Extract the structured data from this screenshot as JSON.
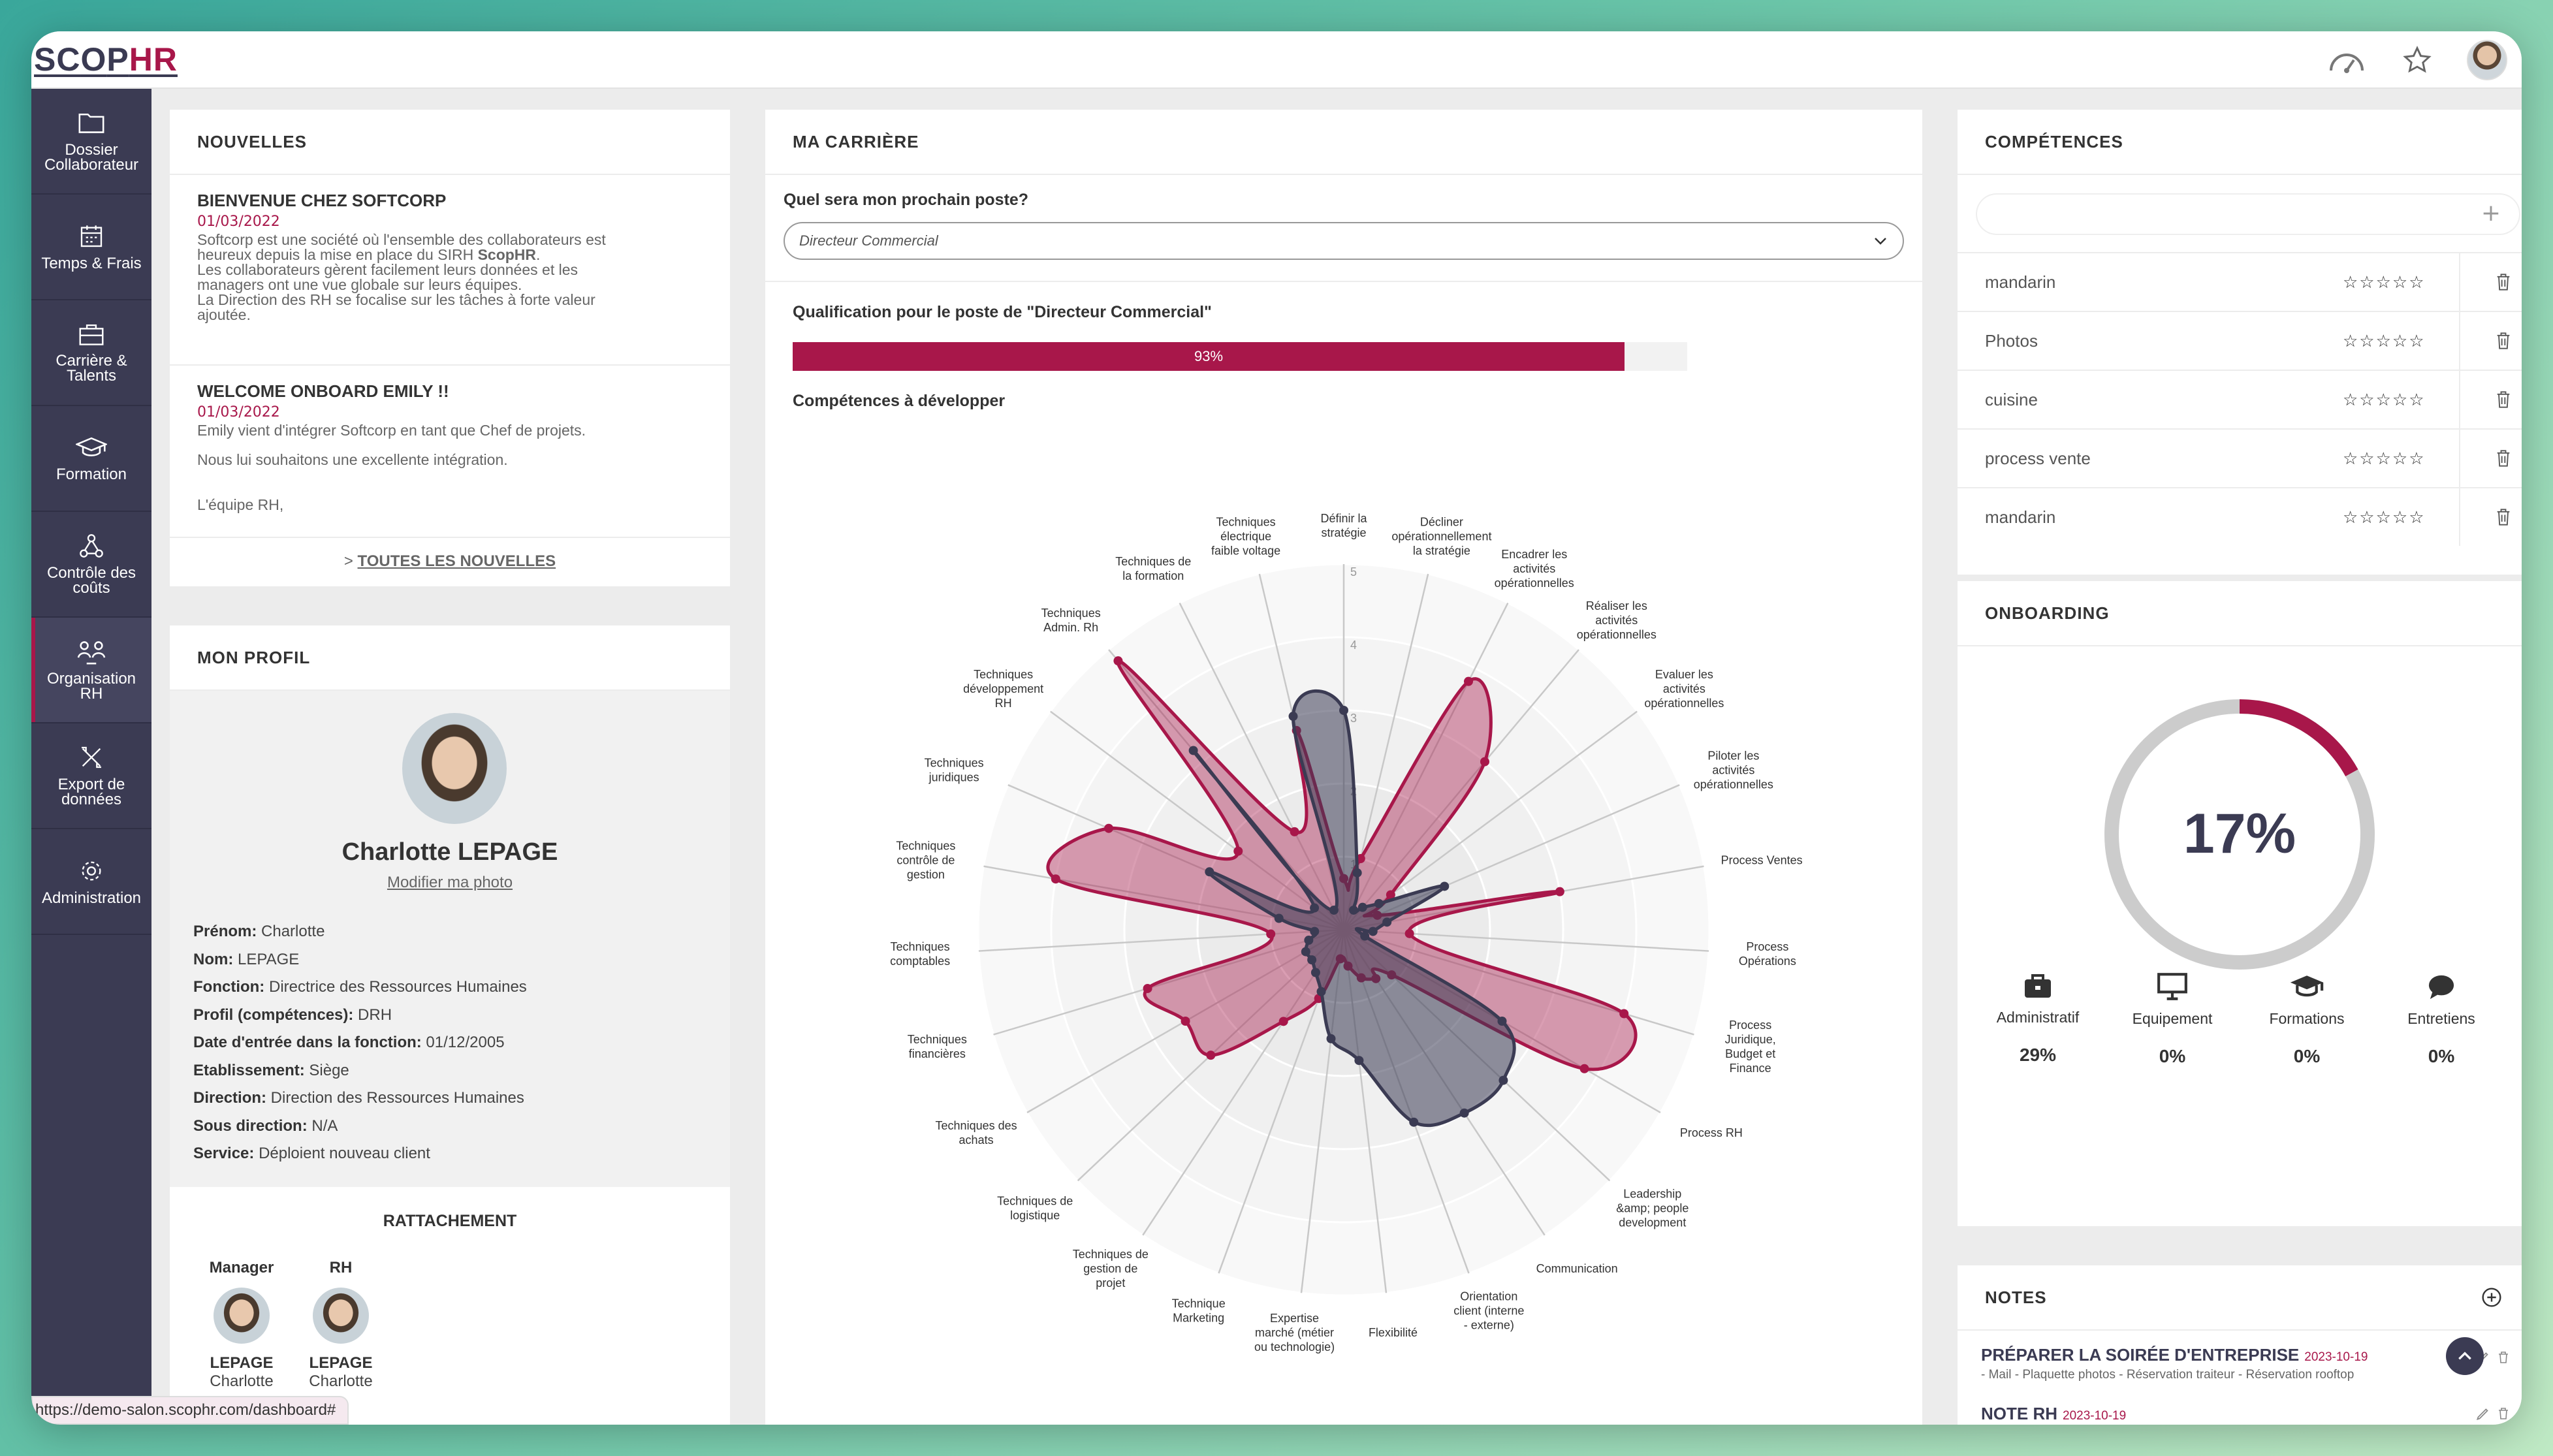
{
  "app": {
    "logo_main": "SC",
    "logo_mid": "O",
    "logo_p": "P",
    "logo_hr": "HR"
  },
  "sidebar": {
    "items": [
      {
        "label": "Dossier Collaborateur",
        "icon": "folder-icon"
      },
      {
        "label": "Temps & Frais",
        "icon": "calendar-icon"
      },
      {
        "label": "Carrière & Talents",
        "icon": "briefcase-icon"
      },
      {
        "label": "Formation",
        "icon": "graduation-cap-icon"
      },
      {
        "label": "Contrôle des coûts",
        "icon": "network-icon"
      },
      {
        "label": "Organisation RH",
        "icon": "people-icon"
      },
      {
        "label": "Export de données",
        "icon": "tools-icon"
      },
      {
        "label": "Administration",
        "icon": "gear-icon"
      }
    ]
  },
  "news": {
    "title": "NOUVELLES",
    "items": [
      {
        "title": "BIENVENUE CHEZ SOFTCORP",
        "date": "01/03/2022",
        "l1": "Softcorp est une société où l'ensemble des collaborateurs est",
        "l2a": "heureux depuis la mise en place du SIRH ",
        "l2b": "ScopHR",
        "l2c": ".",
        "l3": "Les collaborateurs gèrent facilement leurs données et les",
        "l4": "managers ont une vue globale sur leurs équipes.",
        "l5": "La Direction des RH se focalise sur les tâches à forte valeur",
        "l6": "ajoutée."
      },
      {
        "title": "WELCOME ONBOARD EMILY !!",
        "date": "01/03/2022",
        "l1": "Emily vient d'intégrer Softcorp en tant que Chef de projets.",
        "l2": "Nous lui souhaitons une excellente intégration.",
        "l3": "L'équipe RH,"
      }
    ],
    "all_prefix": "> ",
    "all_label": "TOUTES LES NOUVELLES"
  },
  "profile": {
    "title": "MON PROFIL",
    "name": "Charlotte LEPAGE",
    "edit_photo": "Modifier ma photo",
    "fields": [
      {
        "k": "Prénom:",
        "v": " Charlotte"
      },
      {
        "k": "Nom:",
        "v": " LEPAGE"
      },
      {
        "k": "Fonction:",
        "v": " Directrice des Ressources Humaines"
      },
      {
        "k": "Profil (compétences):",
        "v": " DRH"
      },
      {
        "k": "Date d'entrée dans la fonction:",
        "v": " 01/12/2005"
      },
      {
        "k": "Etablissement:",
        "v": " Siège"
      },
      {
        "k": "Direction:",
        "v": " Direction des Ressources Humaines"
      },
      {
        "k": "Sous direction:",
        "v": " N/A"
      },
      {
        "k": "Service:",
        "v": " Déploient nouveau client"
      }
    ],
    "rattachement": "RATTACHEMENT",
    "manager": {
      "role": "Manager",
      "last": "LEPAGE",
      "first": "Charlotte"
    },
    "rh": {
      "role": "RH",
      "last": "LEPAGE",
      "first": "Charlotte"
    }
  },
  "career": {
    "title": "MA CARRIÈRE",
    "question": "Quel sera mon prochain poste?",
    "selected": "Directeur Commercial",
    "qual_title": "Qualification pour le poste de \"Directeur Commercial\"",
    "progress": 93,
    "progress_label": "93%",
    "dev_title": "Compétences à développer"
  },
  "chart_data": {
    "type": "radar",
    "r_ticks": [
      "1",
      "2",
      "3",
      "4",
      "5"
    ],
    "rmax": 5,
    "categories": [
      "Définir la stratégie",
      "Décliner opérationnellement la stratégie",
      "Encadrer les activités opérationnelles",
      "Réaliser les activités opérationnelles",
      "Evaluer les activités opérationnelles",
      "Piloter les activités opérationnelles",
      "Process Ventes",
      "Process Opérations",
      "Process Juridique, Budget et Finance",
      "Process RH",
      "Leadership &amp; people development",
      "Communication",
      "Orientation client (interne - externe)",
      "Flexibilité",
      "Expertise marché (métier ou technologie)",
      "Technique Marketing",
      "Techniques de gestion de projet",
      "Techniques de logistique",
      "Techniques des achats",
      "Techniques financières",
      "Techniques comptables",
      "Techniques contrôle de gestion",
      "Techniques juridiques",
      "Techniques développement RH",
      "Techniques Admin. Rh",
      "Techniques de la formation",
      "Techniques électrique faible voltage"
    ],
    "series": [
      {
        "color": "#a8174a",
        "values": [
          0.7,
          1.0,
          3.8,
          3.0,
          0.8,
          0.5,
          3.0,
          0.9,
          4.0,
          3.8,
          0.9,
          0.8,
          0.7,
          0.5,
          0.4,
          1.0,
          1.5,
          2.5,
          2.5,
          2.8,
          1.0,
          4.0,
          3.5,
          1.8,
          4.8,
          1.5,
          2.8
        ]
      },
      {
        "color": "#3b3b53",
        "values": [
          3.0,
          0.8,
          0.3,
          0.4,
          0.6,
          1.5,
          0.6,
          0.4,
          0.3,
          2.5,
          3.0,
          3.0,
          2.8,
          1.8,
          1.5,
          0.9,
          0.7,
          0.6,
          0.6,
          0.5,
          0.4,
          0.9,
          2.0,
          0.5,
          3.2,
          0.3,
          3.0
        ]
      }
    ]
  },
  "competences": {
    "title": "COMPÉTENCES",
    "add_symbol": "+",
    "items": [
      {
        "name": "mandarin",
        "stars": "☆☆☆☆☆"
      },
      {
        "name": "Photos",
        "stars": "☆☆☆☆☆"
      },
      {
        "name": "cuisine",
        "stars": "☆☆☆☆☆"
      },
      {
        "name": "process vente",
        "stars": "☆☆☆☆☆"
      },
      {
        "name": "mandarin",
        "stars": "☆☆☆☆☆"
      }
    ]
  },
  "onboarding": {
    "title": "ONBOARDING",
    "percent": 17,
    "percent_label": "17%",
    "stats": [
      {
        "label": "Administratif",
        "value": "29%",
        "icon": "briefcase-icon"
      },
      {
        "label": "Equipement",
        "value": "0%",
        "icon": "monitor-icon"
      },
      {
        "label": "Formations",
        "value": "0%",
        "icon": "graduation-cap-icon"
      },
      {
        "label": "Entretiens",
        "value": "0%",
        "icon": "chat-icon"
      }
    ]
  },
  "notes": {
    "title": "NOTES",
    "items": [
      {
        "title": "PRÉPARER LA SOIRÉE D'ENTREPRISE",
        "date": "2023-10-19",
        "meta": "- Mail - Plaquette photos - Réservation traiteur - Réservation rooftop"
      },
      {
        "title": "NOTE RH",
        "date": "2023-10-19",
        "meta": ""
      }
    ]
  },
  "statusbar": {
    "url": "https://demo-salon.scophr.com/dashboard#"
  },
  "colors": {
    "accent": "#a8174a",
    "sidebar": "#3b3b53"
  }
}
